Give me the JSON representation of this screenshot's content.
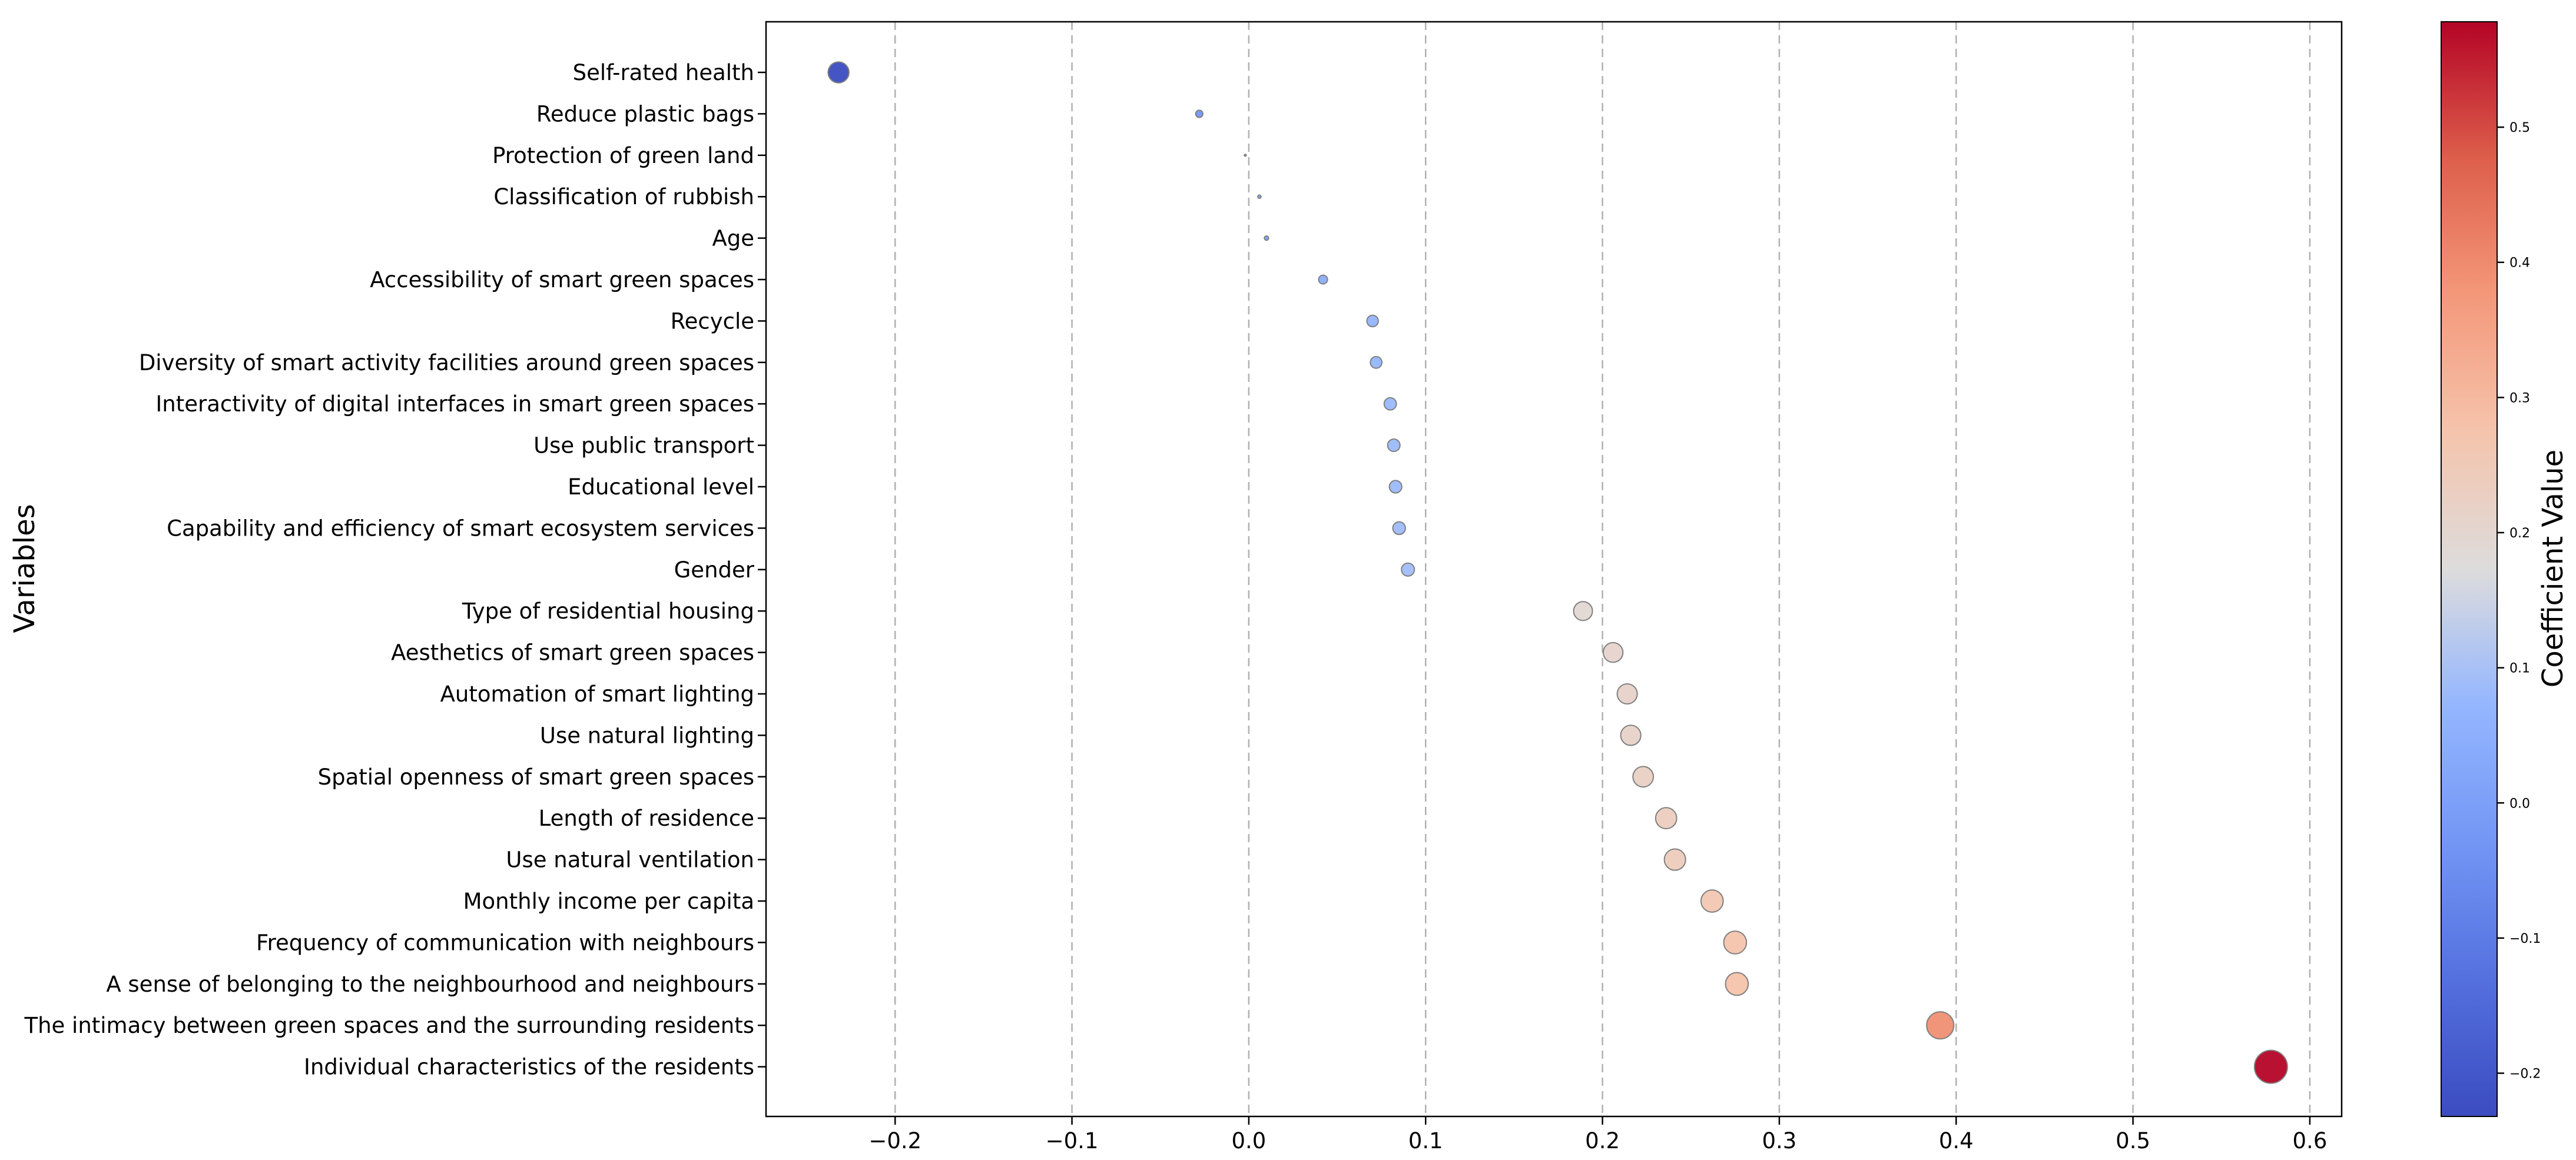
{
  "chart_data": {
    "type": "scatter",
    "title": "",
    "xlabel": "",
    "ylabel": "Variables",
    "colorbar_label": "Coefficient Value",
    "xlim": [
      -0.273,
      0.618
    ],
    "xticks": [
      -0.2,
      -0.1,
      0.0,
      0.1,
      0.2,
      0.3,
      0.4,
      0.5,
      0.6
    ],
    "xtick_labels": [
      "−0.2",
      "−0.1",
      "0.0",
      "0.1",
      "0.2",
      "0.3",
      "0.4",
      "0.5",
      "0.6"
    ],
    "color_range": [
      -0.232,
      0.578
    ],
    "colorbar_ticks": [
      -0.2,
      -0.1,
      0.0,
      0.1,
      0.2,
      0.3,
      0.4,
      0.5
    ],
    "colorbar_tick_labels": [
      "−0.2",
      "−0.1",
      "0.0",
      "0.1",
      "0.2",
      "0.3",
      "0.4",
      "0.5"
    ],
    "colormap": "coolwarm",
    "grid": "vertical dashed",
    "categories": [
      "Self-rated health",
      "Reduce plastic bags",
      "Protection of green land",
      "Classification of rubbish",
      "Age",
      "Accessibility of smart green spaces",
      "Recycle",
      "Diversity of smart activity facilities around green spaces",
      "Interactivity of digital interfaces in smart green spaces",
      "Use public transport",
      "Educational level",
      "Capability and efficiency of smart ecosystem services",
      "Gender",
      "Type of residential housing",
      "Aesthetics of smart green spaces",
      "Automation of smart lighting",
      "Use natural lighting",
      "Spatial openness of smart green spaces",
      "Length of residence",
      "Use natural ventilation",
      "Monthly income per capita",
      "Frequency of communication with neighbours",
      "A sense of belonging to the neighbourhood and neighbours",
      "The intimacy between green spaces and the surrounding residents",
      "Individual characteristics of the residents"
    ],
    "values": [
      -0.232,
      -0.028,
      -0.002,
      0.006,
      0.01,
      0.042,
      0.07,
      0.072,
      0.08,
      0.082,
      0.083,
      0.085,
      0.09,
      0.189,
      0.206,
      0.214,
      0.216,
      0.223,
      0.236,
      0.241,
      0.262,
      0.275,
      0.276,
      0.391,
      0.578
    ]
  }
}
